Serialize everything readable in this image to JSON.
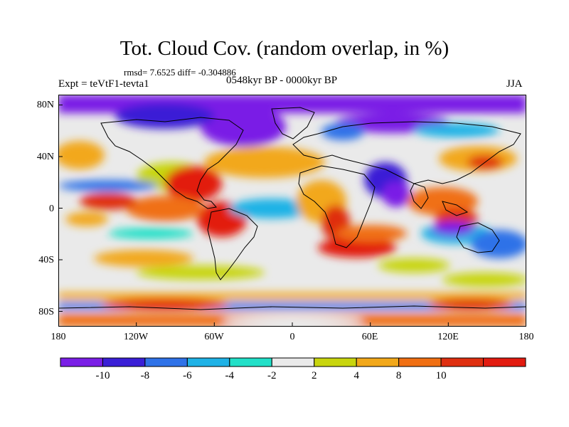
{
  "figure": {
    "title": "Tot. Cloud Cov. (random overlap, in %)",
    "stats": "rmsd= 7.6525 diff= -0.304886",
    "experiment": "Expt = teVtF1-tevta1",
    "period": "0548kyr BP - 0000kyr BP",
    "season": "JJA"
  },
  "map": {
    "variable": "total cloud cover difference",
    "units": "%",
    "lat_labels": [
      "80N",
      "40N",
      "0",
      "40S",
      "80S"
    ],
    "lon_labels": [
      "180",
      "120W",
      "60W",
      "0",
      "60E",
      "120E",
      "180"
    ],
    "projection": "cylindrical equidistant, 180W to 180E"
  },
  "colorbar": {
    "levels": [
      "-10",
      "-8",
      "-6",
      "-4",
      "-2",
      "2",
      "4",
      "8",
      "10"
    ],
    "colors": [
      "#7a1fe6",
      "#3a1fd6",
      "#2f72e8",
      "#1fb2e6",
      "#22e0c8",
      "#eaeaea",
      "#c8d50e",
      "#f2a81a",
      "#f06f12",
      "#df2f10",
      "#e21b10"
    ]
  }
}
